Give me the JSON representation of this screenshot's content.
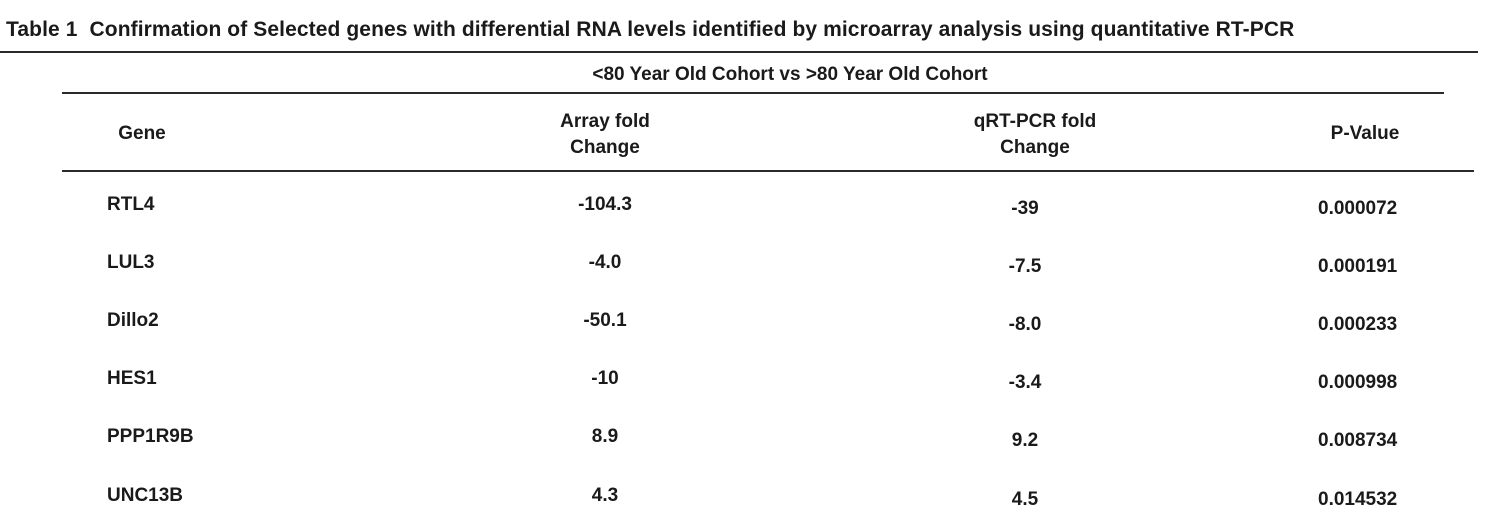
{
  "table": {
    "number": "Table 1",
    "caption": "Confirmation of Selected genes with differential RNA levels identified by microarray analysis using quantitative RT-PCR",
    "cohort_header": "<80 Year Old Cohort vs >80 Year Old Cohort",
    "columns": {
      "gene": "Gene",
      "array_line1": "Array fold",
      "array_line2": "Change",
      "qrt_line1": "qRT-PCR fold",
      "qrt_line2": "Change",
      "pvalue": "P-Value"
    },
    "rows": [
      {
        "gene": "RTL4",
        "array": "-104.3",
        "qrt": "-39",
        "p": "0.000072"
      },
      {
        "gene": "LUL3",
        "array": "-4.0",
        "qrt": "-7.5",
        "p": "0.000191"
      },
      {
        "gene": "Dillo2",
        "array": "-50.1",
        "qrt": "-8.0",
        "p": "0.000233"
      },
      {
        "gene": "HES1",
        "array": "-10",
        "qrt": "-3.4",
        "p": "0.000998"
      },
      {
        "gene": "PPP1R9B",
        "array": "8.9",
        "qrt": "9.2",
        "p": "0.008734"
      },
      {
        "gene": "UNC13B",
        "array": "4.3",
        "qrt": "4.5",
        "p": "0.014532"
      }
    ]
  }
}
